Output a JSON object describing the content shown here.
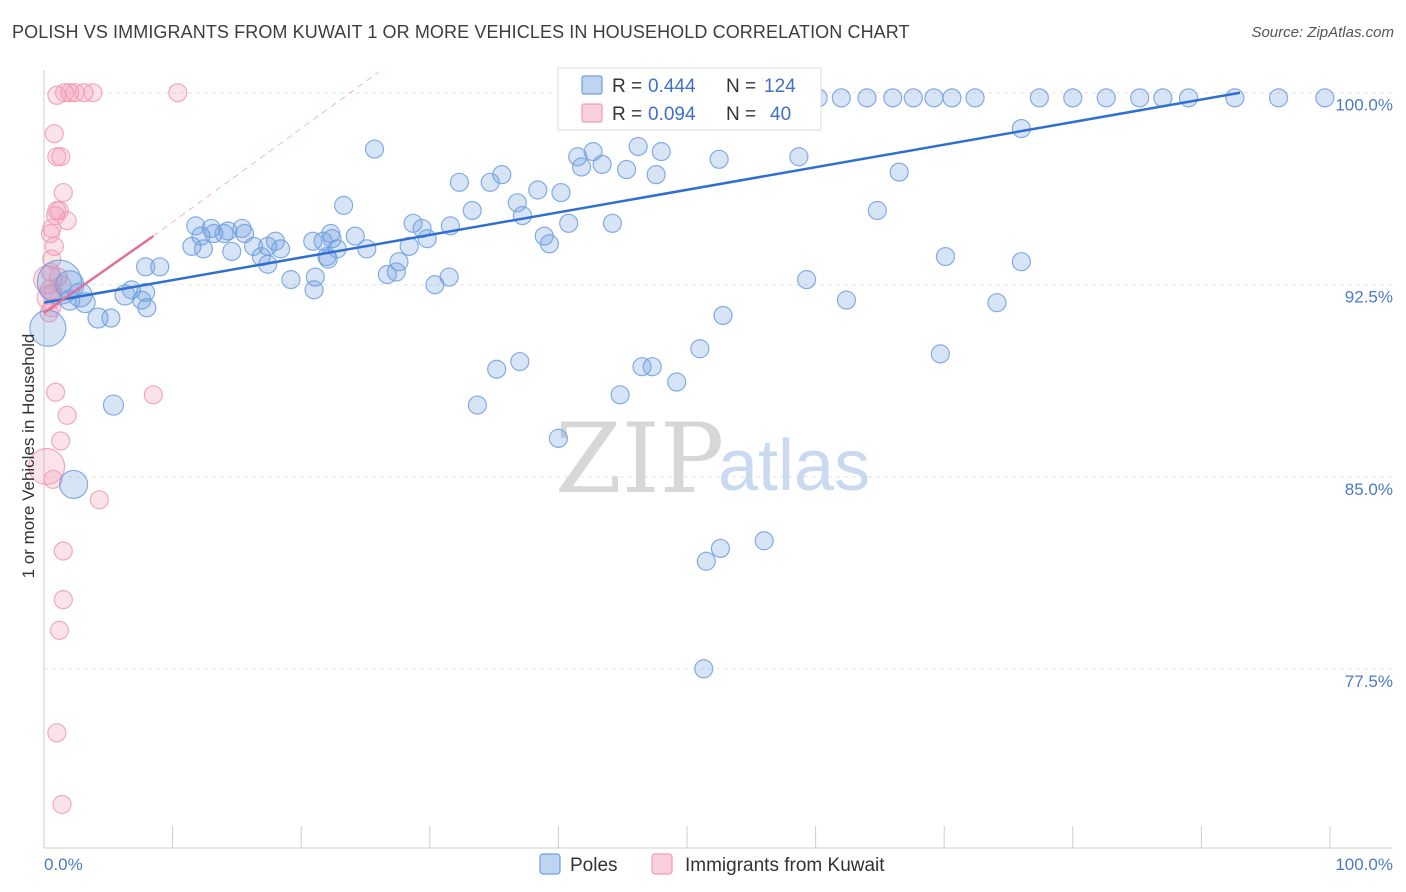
{
  "title": "POLISH VS IMMIGRANTS FROM KUWAIT 1 OR MORE VEHICLES IN HOUSEHOLD CORRELATION CHART",
  "source": "Source: ZipAtlas.com",
  "watermark": {
    "zip": "ZIP",
    "atlas": "atlas"
  },
  "colors": {
    "blue": "#6f9fe0",
    "blue_line": "#2f6fd0",
    "pink": "#f29ab4",
    "pink_line": "#e0709a"
  },
  "legend": {
    "r_label": "R =",
    "n_label": "N =",
    "rows": [
      {
        "r": "0.444",
        "n": "124",
        "color": "#6f9fe0"
      },
      {
        "r": "0.094",
        "n": "40",
        "color": "#f29ab4"
      }
    ]
  },
  "bottom_legend": [
    {
      "label": "Poles",
      "color": "#6f9fe0"
    },
    {
      "label": "Immigrants from Kuwait",
      "color": "#f29ab4"
    }
  ],
  "chart_data": {
    "type": "scatter",
    "title": "POLISH VS IMMIGRANTS FROM KUWAIT 1 OR MORE VEHICLES IN HOUSEHOLD CORRELATION CHART",
    "xlabel": "",
    "ylabel": "1 or more Vehicles in Household",
    "xlim": [
      0,
      100
    ],
    "ylim": [
      70.5,
      101.2
    ],
    "x_tick_labels": [
      "0.0%",
      "100.0%"
    ],
    "y_ticks": [
      77.5,
      85.0,
      92.5,
      100.0
    ],
    "y_tick_labels": [
      "77.5%",
      "85.0%",
      "92.5%",
      "100.0%"
    ],
    "grid": true,
    "legend_placement": "top-center",
    "series": [
      {
        "name": "Poles",
        "color": "#6f9fe0",
        "trend": {
          "x": [
            0,
            93
          ],
          "y": [
            91.8,
            100.0
          ]
        },
        "points": [
          [
            0.3,
            90.8,
            18
          ],
          [
            1.2,
            92.6,
            22
          ],
          [
            2.0,
            92.5,
            14
          ],
          [
            2.8,
            92.1,
            12
          ],
          [
            2.0,
            91.9,
            10
          ],
          [
            3.2,
            91.8,
            10
          ],
          [
            4.2,
            91.2,
            10
          ],
          [
            6.3,
            92.1,
            10
          ],
          [
            6.8,
            92.3,
            9
          ],
          [
            7.6,
            91.9,
            9
          ],
          [
            8.0,
            91.6,
            9
          ],
          [
            5.2,
            91.2,
            9
          ],
          [
            7.9,
            92.2,
            9
          ],
          [
            5.4,
            87.8,
            10
          ],
          [
            2.3,
            84.7,
            14
          ],
          [
            7.9,
            93.2,
            9
          ],
          [
            9.0,
            93.2,
            9
          ],
          [
            11.5,
            94.0,
            9
          ],
          [
            12.2,
            94.4,
            9
          ],
          [
            11.8,
            94.8,
            9
          ],
          [
            12.4,
            93.9,
            9
          ],
          [
            13.0,
            94.7,
            9
          ],
          [
            14.3,
            94.6,
            9
          ],
          [
            14.6,
            93.8,
            9
          ],
          [
            13.2,
            94.5,
            9
          ],
          [
            14.0,
            94.5,
            9
          ],
          [
            15.6,
            94.5,
            9
          ],
          [
            15.4,
            94.7,
            9
          ],
          [
            16.3,
            94.0,
            9
          ],
          [
            17.4,
            94.0,
            9
          ],
          [
            16.9,
            93.6,
            9
          ],
          [
            18.0,
            94.2,
            9
          ],
          [
            17.4,
            93.3,
            9
          ],
          [
            18.4,
            93.9,
            9
          ],
          [
            19.2,
            92.7,
            9
          ],
          [
            21.1,
            92.8,
            9
          ],
          [
            20.9,
            94.2,
            9
          ],
          [
            21.7,
            94.2,
            9
          ],
          [
            22.3,
            94.5,
            9
          ],
          [
            22.0,
            93.6,
            9
          ],
          [
            22.8,
            93.9,
            9
          ],
          [
            24.2,
            94.4,
            9
          ],
          [
            23.3,
            95.6,
            9
          ],
          [
            22.4,
            94.3,
            9
          ],
          [
            21.0,
            92.3,
            9
          ],
          [
            22.1,
            93.5,
            9
          ],
          [
            25.1,
            93.9,
            9
          ],
          [
            25.7,
            97.8,
            9
          ],
          [
            26.7,
            92.9,
            9
          ],
          [
            27.4,
            93.0,
            9
          ],
          [
            27.6,
            93.4,
            9
          ],
          [
            28.4,
            94.0,
            9
          ],
          [
            28.7,
            94.9,
            9
          ],
          [
            29.4,
            94.7,
            9
          ],
          [
            29.8,
            94.3,
            9
          ],
          [
            30.4,
            92.5,
            9
          ],
          [
            31.5,
            92.8,
            9
          ],
          [
            31.6,
            94.8,
            9
          ],
          [
            33.3,
            95.4,
            9
          ],
          [
            32.3,
            96.5,
            9
          ],
          [
            34.7,
            96.5,
            9
          ],
          [
            35.6,
            96.8,
            9
          ],
          [
            36.8,
            95.7,
            9
          ],
          [
            37.2,
            95.2,
            9
          ],
          [
            38.9,
            94.4,
            9
          ],
          [
            39.3,
            94.1,
            9
          ],
          [
            38.4,
            96.2,
            9
          ],
          [
            40.2,
            96.1,
            9
          ],
          [
            40.8,
            94.9,
            9
          ],
          [
            41.8,
            97.1,
            9
          ],
          [
            42.7,
            97.7,
            9
          ],
          [
            44.2,
            94.9,
            9
          ],
          [
            43.4,
            97.2,
            9
          ],
          [
            41.5,
            97.5,
            9
          ],
          [
            45.3,
            97.0,
            9
          ],
          [
            46.2,
            97.9,
            9
          ],
          [
            47.6,
            96.8,
            9
          ],
          [
            48.0,
            97.7,
            9
          ],
          [
            48.4,
            99.8,
            9
          ],
          [
            46.0,
            99.8,
            9
          ],
          [
            44.3,
            99.8,
            9
          ],
          [
            51.1,
            99.8,
            9
          ],
          [
            52.4,
            99.8,
            9
          ],
          [
            50.2,
            99.8,
            9
          ],
          [
            53.5,
            99.8,
            9
          ],
          [
            55.0,
            99.8,
            9
          ],
          [
            57.0,
            99.8,
            9
          ],
          [
            58.4,
            99.8,
            9
          ],
          [
            60.2,
            99.8,
            9
          ],
          [
            62.0,
            99.8,
            9
          ],
          [
            64.0,
            99.8,
            9
          ],
          [
            66.0,
            99.8,
            9
          ],
          [
            67.6,
            99.8,
            9
          ],
          [
            69.2,
            99.8,
            9
          ],
          [
            70.6,
            99.8,
            9
          ],
          [
            72.4,
            99.8,
            9
          ],
          [
            77.4,
            99.8,
            9
          ],
          [
            80.0,
            99.8,
            9
          ],
          [
            82.6,
            99.8,
            9
          ],
          [
            85.2,
            99.8,
            9
          ],
          [
            87.0,
            99.8,
            9
          ],
          [
            89.0,
            99.8,
            9
          ],
          [
            92.6,
            99.8,
            9
          ],
          [
            96.0,
            99.8,
            9
          ],
          [
            99.6,
            99.8,
            9
          ],
          [
            76.0,
            98.6,
            9
          ],
          [
            66.5,
            96.9,
            9
          ],
          [
            58.7,
            97.5,
            9
          ],
          [
            52.5,
            97.4,
            9
          ],
          [
            64.8,
            95.4,
            9
          ],
          [
            70.1,
            93.6,
            9
          ],
          [
            76.0,
            93.4,
            9
          ],
          [
            59.3,
            92.7,
            9
          ],
          [
            62.4,
            91.9,
            9
          ],
          [
            74.1,
            91.8,
            9
          ],
          [
            69.7,
            89.8,
            9
          ],
          [
            52.8,
            91.3,
            9
          ],
          [
            51.0,
            90.0,
            9
          ],
          [
            47.3,
            89.3,
            9
          ],
          [
            46.5,
            89.3,
            9
          ],
          [
            49.2,
            88.7,
            9
          ],
          [
            44.8,
            88.2,
            9
          ],
          [
            37.0,
            89.5,
            9
          ],
          [
            35.2,
            89.2,
            9
          ],
          [
            33.7,
            87.8,
            9
          ],
          [
            40.0,
            86.5,
            9
          ],
          [
            56.0,
            82.5,
            9
          ],
          [
            52.6,
            82.2,
            9
          ],
          [
            51.5,
            81.7,
            9
          ],
          [
            51.3,
            77.5,
            9
          ]
        ]
      },
      {
        "name": "Immigrants from Kuwait",
        "color": "#f29ab4",
        "trend": {
          "x": [
            0,
            8.5
          ],
          "y": [
            91.4,
            94.4
          ]
        },
        "trend_extension": {
          "x": [
            8.5,
            26
          ],
          "y": [
            94.4,
            100.8
          ]
        },
        "points": [
          [
            0.2,
            85.4,
            18
          ],
          [
            0.3,
            92.7,
            14
          ],
          [
            0.4,
            92.0,
            12
          ],
          [
            0.5,
            92.3,
            10
          ],
          [
            0.6,
            91.6,
            9
          ],
          [
            0.4,
            91.4,
            9
          ],
          [
            0.5,
            93.0,
            9
          ],
          [
            0.6,
            93.5,
            9
          ],
          [
            0.7,
            92.2,
            9
          ],
          [
            0.8,
            94.0,
            9
          ],
          [
            0.6,
            94.7,
            9
          ],
          [
            0.9,
            95.2,
            9
          ],
          [
            1.2,
            95.4,
            9
          ],
          [
            1.5,
            96.1,
            9
          ],
          [
            1.0,
            97.5,
            9
          ],
          [
            1.3,
            97.5,
            9
          ],
          [
            0.8,
            98.4,
            9
          ],
          [
            1.0,
            99.9,
            9
          ],
          [
            1.6,
            100.0,
            9
          ],
          [
            2.0,
            100.0,
            9
          ],
          [
            2.4,
            100.0,
            9
          ],
          [
            3.1,
            100.0,
            9
          ],
          [
            3.8,
            100.0,
            9
          ],
          [
            10.4,
            100.0,
            9
          ],
          [
            1.0,
            95.4,
            9
          ],
          [
            0.5,
            94.5,
            9
          ],
          [
            1.8,
            95.0,
            9
          ],
          [
            1.1,
            92.8,
            9
          ],
          [
            1.4,
            92.5,
            9
          ],
          [
            0.9,
            88.3,
            9
          ],
          [
            8.5,
            88.2,
            9
          ],
          [
            1.8,
            87.4,
            9
          ],
          [
            1.3,
            86.4,
            9
          ],
          [
            0.7,
            84.9,
            9
          ],
          [
            4.3,
            84.1,
            9
          ],
          [
            1.5,
            82.1,
            9
          ],
          [
            1.5,
            80.2,
            9
          ],
          [
            1.2,
            79.0,
            9
          ],
          [
            1.0,
            75.0,
            9
          ],
          [
            1.4,
            72.2,
            9
          ]
        ]
      }
    ]
  }
}
